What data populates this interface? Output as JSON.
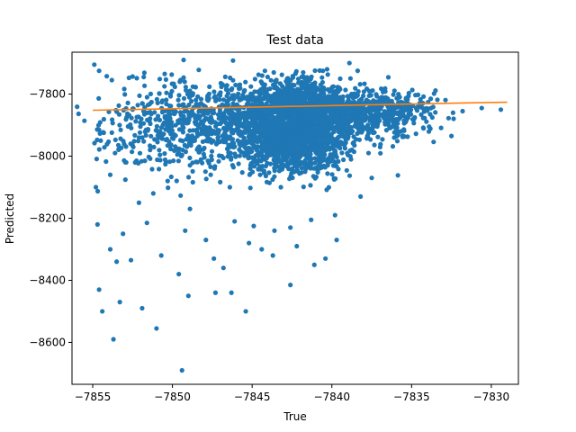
{
  "chart_data": {
    "type": "scatter",
    "title": "Test data",
    "xlabel": "True",
    "ylabel": "Predicted",
    "xlim": [
      -7856.3,
      -7828.3
    ],
    "ylim": [
      -8735,
      -7665
    ],
    "xticks": [
      -7855,
      -7850,
      -7845,
      -7840,
      -7835,
      -7830
    ],
    "yticks": [
      -7800,
      -8000,
      -8200,
      -8400,
      -8600
    ],
    "xtick_labels": [
      "−7855",
      "−7850",
      "−7845",
      "−7840",
      "−7835",
      "−7830"
    ],
    "ytick_labels": [
      "−7800",
      "−8000",
      "−8200",
      "−8400",
      "−8600"
    ],
    "grid": false,
    "legend": "none",
    "colors": {
      "points": "#1f77b4",
      "fit_line": "#ff7f0e"
    },
    "series": [
      {
        "kind": "scatter",
        "points": [
          [
            -7854.9,
            -7705
          ],
          [
            -7849.3,
            -7690
          ],
          [
            -7854.6,
            -7725
          ],
          [
            -7853.8,
            -7755
          ],
          [
            -7852.5,
            -7850
          ],
          [
            -7851.8,
            -7745
          ],
          [
            -7850.5,
            -7775
          ],
          [
            -7846.2,
            -7692
          ],
          [
            -7838.9,
            -7700
          ],
          [
            -7836.6,
            -7820
          ],
          [
            -7835.9,
            -7840
          ],
          [
            -7835.3,
            -7850
          ],
          [
            -7834.5,
            -7830
          ],
          [
            -7833.8,
            -7815
          ],
          [
            -7832.4,
            -7860
          ],
          [
            -7831.8,
            -7855
          ],
          [
            -7830.6,
            -7845
          ],
          [
            -7829.4,
            -7850
          ],
          [
            -7833.9,
            -7905
          ],
          [
            -7832.5,
            -7935
          ],
          [
            -7834.8,
            -7875
          ],
          [
            -7836.1,
            -7900
          ],
          [
            -7854.5,
            -7950
          ],
          [
            -7853.6,
            -7990
          ],
          [
            -7852.9,
            -8020
          ],
          [
            -7851.4,
            -7980
          ],
          [
            -7849.8,
            -7900
          ],
          [
            -7848.6,
            -7950
          ],
          [
            -7854.8,
            -8100
          ],
          [
            -7853.9,
            -8060
          ],
          [
            -7852.1,
            -8150
          ],
          [
            -7851.2,
            -8120
          ],
          [
            -7850.3,
            -8080
          ],
          [
            -7848.9,
            -8170
          ],
          [
            -7847.6,
            -8060
          ],
          [
            -7846.4,
            -8100
          ],
          [
            -7854.7,
            -8220
          ],
          [
            -7853.1,
            -8250
          ],
          [
            -7851.6,
            -8215
          ],
          [
            -7849.2,
            -8240
          ],
          [
            -7847.9,
            -8270
          ],
          [
            -7846.1,
            -8210
          ],
          [
            -7844.9,
            -8225
          ],
          [
            -7843.6,
            -8240
          ],
          [
            -7842.6,
            -8230
          ],
          [
            -7841.3,
            -8205
          ],
          [
            -7839.8,
            -8190
          ],
          [
            -7838.2,
            -8130
          ],
          [
            -7837.5,
            -8070
          ],
          [
            -7838.8,
            -8010
          ],
          [
            -7837.7,
            -7990
          ],
          [
            -7853.9,
            -8300
          ],
          [
            -7853.5,
            -8340
          ],
          [
            -7852.6,
            -8335
          ],
          [
            -7850.7,
            -8320
          ],
          [
            -7849.6,
            -8380
          ],
          [
            -7847.4,
            -8330
          ],
          [
            -7846.8,
            -8360
          ],
          [
            -7845.2,
            -8280
          ],
          [
            -7844.4,
            -8300
          ],
          [
            -7843.7,
            -8320
          ],
          [
            -7842.2,
            -8290
          ],
          [
            -7841.1,
            -8350
          ],
          [
            -7840.4,
            -8330
          ],
          [
            -7839.7,
            -8270
          ],
          [
            -7854.6,
            -8430
          ],
          [
            -7853.3,
            -8470
          ],
          [
            -7851.9,
            -8490
          ],
          [
            -7849.0,
            -8450
          ],
          [
            -7847.3,
            -8440
          ],
          [
            -7846.3,
            -8440
          ],
          [
            -7845.4,
            -8500
          ],
          [
            -7842.6,
            -8415
          ],
          [
            -7854.4,
            -8500
          ],
          [
            -7853.7,
            -8590
          ],
          [
            -7851.0,
            -8555
          ],
          [
            -7849.4,
            -8690
          ],
          [
            -7845.0,
            -7880
          ],
          [
            -7844.0,
            -7920
          ],
          [
            -7843.0,
            -7900
          ],
          [
            -7842.0,
            -7950
          ],
          [
            -7841.0,
            -7880
          ],
          [
            -7840.0,
            -7910
          ],
          [
            -7843.5,
            -7990
          ],
          [
            -7842.5,
            -8040
          ],
          [
            -7841.5,
            -8000
          ],
          [
            -7844.5,
            -8060
          ],
          [
            -7843.2,
            -8100
          ],
          [
            -7842.8,
            -7760
          ],
          [
            -7841.8,
            -7730
          ],
          [
            -7840.7,
            -7770
          ],
          [
            -7839.6,
            -7790
          ],
          [
            -7838.5,
            -7840
          ],
          [
            -7837.3,
            -7870
          ],
          [
            -7846.5,
            -7820
          ],
          [
            -7847.5,
            -7860
          ],
          [
            -7848.4,
            -7900
          ],
          [
            -7849.9,
            -7930
          ],
          [
            -7845.8,
            -7960
          ],
          [
            -7846.9,
            -8000
          ],
          [
            -7844.2,
            -7725
          ],
          [
            -7840.3,
            -7720
          ]
        ]
      },
      {
        "kind": "line",
        "x": [
          -7855.0,
          -7829.0
        ],
        "y": [
          -7852,
          -7826
        ]
      }
    ]
  }
}
